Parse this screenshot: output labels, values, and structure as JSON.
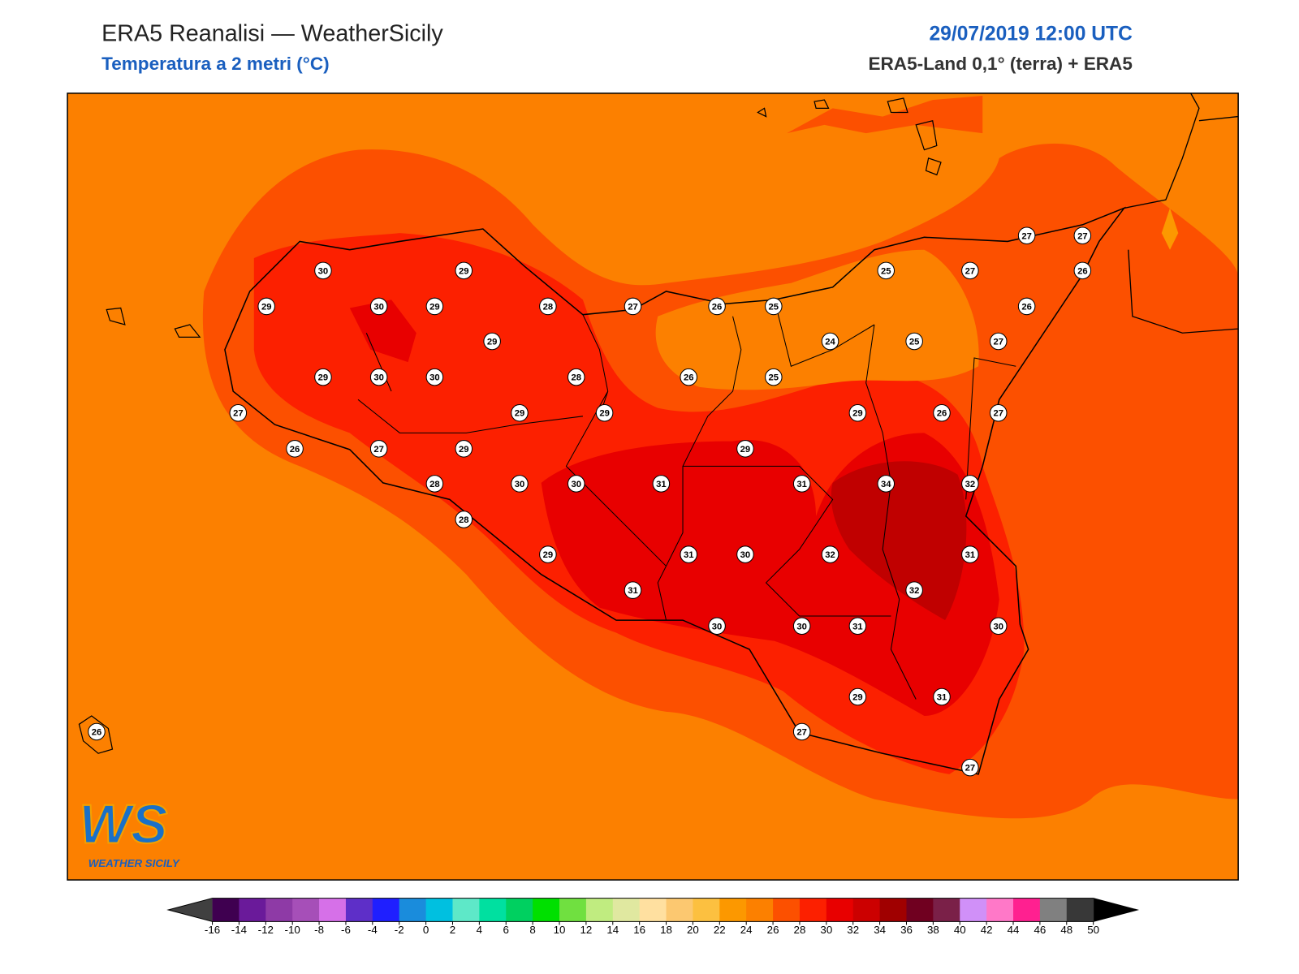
{
  "header": {
    "title": "ERA5 Reanalisi — WeatherSicily",
    "subtitle": "Temperatura a 2 metri (°C)",
    "date": "29/07/2019 12:00 UTC",
    "source": "ERA5-Land 0,1° (terra) + ERA5"
  },
  "logo": {
    "mark": "WS",
    "name": "WEATHER SICILY"
  },
  "stations": [
    30,
    29,
    29,
    30,
    29,
    28,
    27,
    26,
    25,
    29,
    29,
    30,
    30,
    28,
    26,
    25,
    27,
    29,
    29,
    26,
    27,
    29,
    29,
    28,
    30,
    30,
    31,
    28,
    29,
    31,
    31,
    30,
    31,
    34,
    32,
    32,
    31,
    32,
    30,
    30,
    31,
    30,
    29,
    31,
    27,
    27,
    26,
    25,
    27,
    27,
    27,
    26,
    26,
    24,
    25,
    27,
    29,
    26,
    27
  ],
  "colorbar": {
    "ticks": [
      -16,
      -14,
      -12,
      -10,
      -8,
      -6,
      -4,
      -2,
      0,
      2,
      4,
      6,
      8,
      10,
      12,
      14,
      16,
      18,
      20,
      22,
      24,
      26,
      28,
      30,
      32,
      34,
      36,
      38,
      40,
      42,
      44,
      46,
      48,
      50
    ],
    "colors": [
      "#3f0050",
      "#6a1a9a",
      "#8e3aa6",
      "#a64fb8",
      "#d670e8",
      "#5e2fc8",
      "#1f1fff",
      "#1a8cdc",
      "#00c0e0",
      "#5ee8c8",
      "#00e0a0",
      "#00d060",
      "#00e000",
      "#70e040",
      "#c0ec80",
      "#e0e8a0",
      "#ffe0a0",
      "#fcc870",
      "#fcc040",
      "#fc9800",
      "#fc8000",
      "#fc5000",
      "#fc2000",
      "#e80000",
      "#cc0000",
      "#a00000",
      "#700020",
      "#7a2048",
      "#d090f8",
      "#ff78c8",
      "#ff2090",
      "#808080",
      "#383838"
    ],
    "under_color": "#404040",
    "over_color": "#000000"
  }
}
